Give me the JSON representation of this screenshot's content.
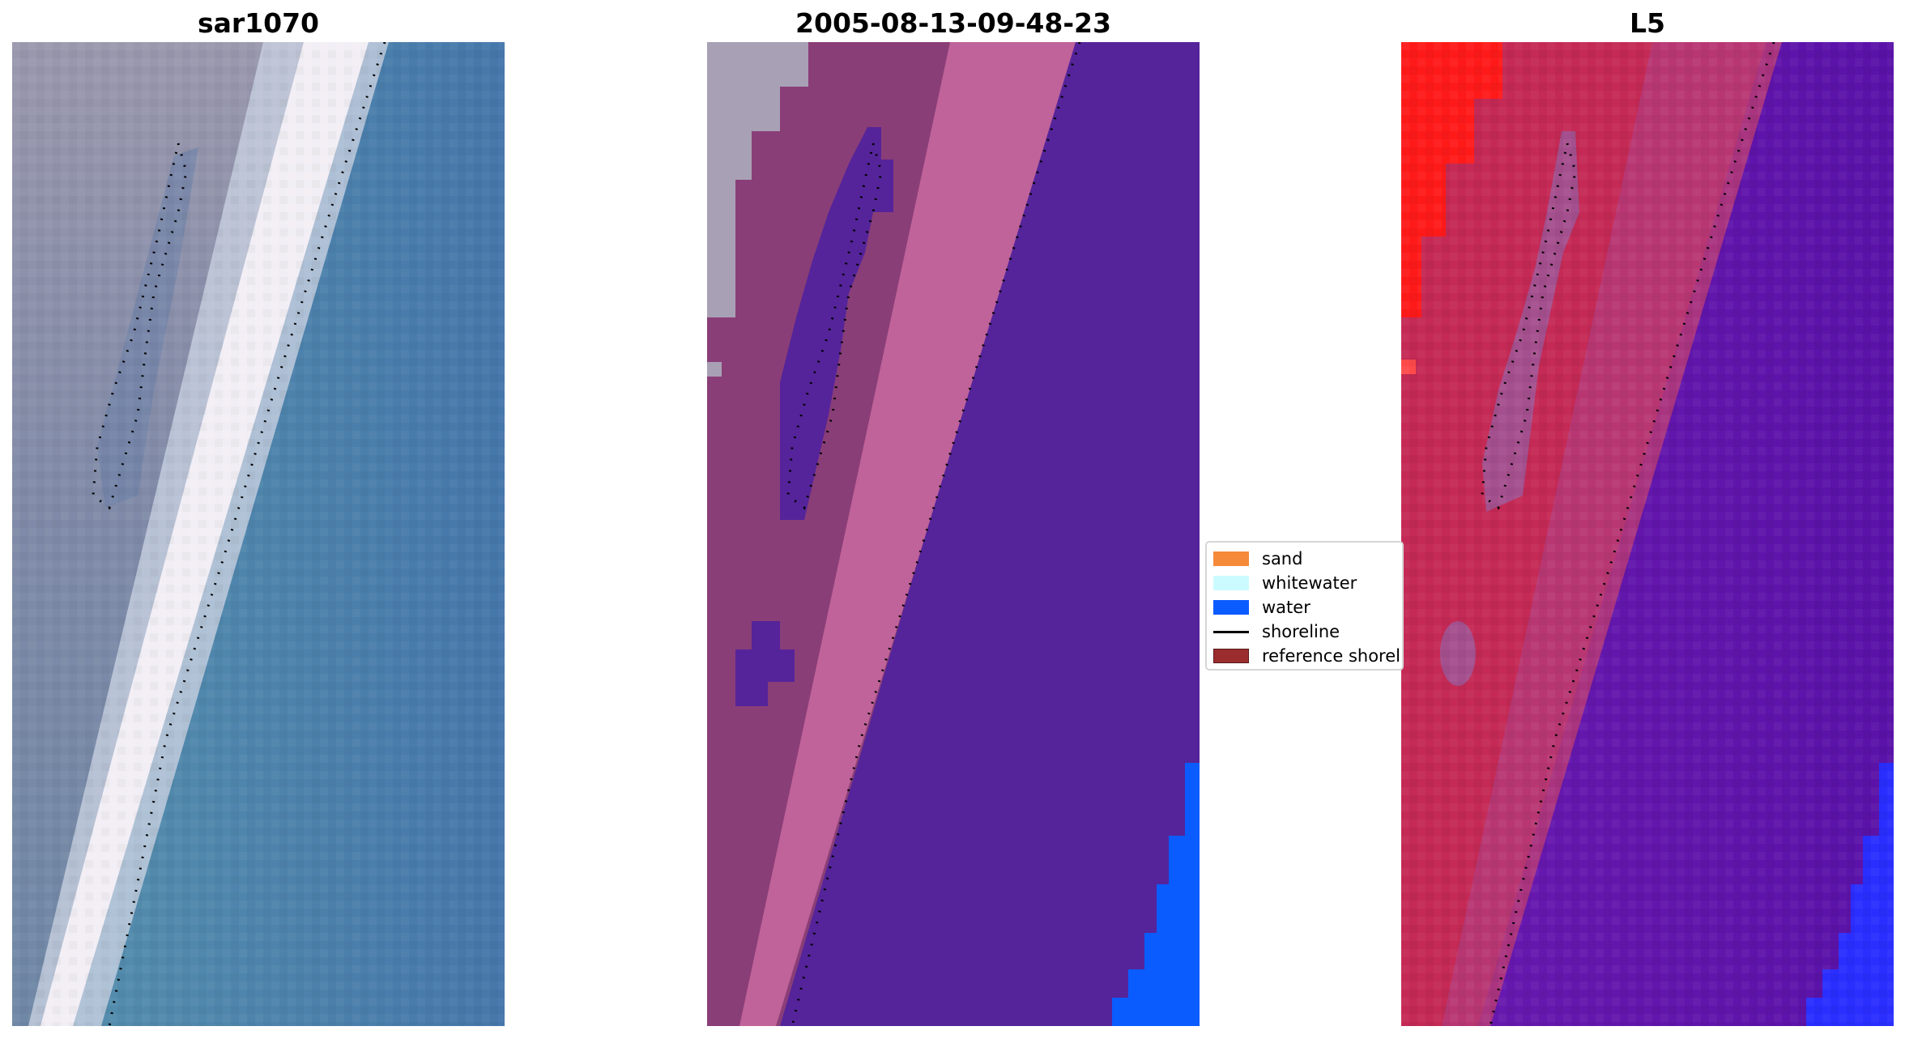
{
  "panels": [
    {
      "title": "sar1070"
    },
    {
      "title": "2005-08-13-09-48-23"
    },
    {
      "title": "L5"
    }
  ],
  "legend": {
    "items": [
      {
        "label": "sand",
        "kind": "patch",
        "color": "#f58a3b"
      },
      {
        "label": "whitewater",
        "kind": "patch",
        "color": "#ccfbff"
      },
      {
        "label": "water",
        "kind": "patch",
        "color": "#0a5cff"
      },
      {
        "label": "shoreline",
        "kind": "line",
        "color": "#000000"
      },
      {
        "label": "reference shoreline",
        "kind": "patch",
        "color": "#9b2d2f"
      }
    ]
  },
  "colors": {
    "sar_land": "#8e92ad",
    "sar_water": "#4b80a6",
    "sar_surf": "#f2eef5",
    "class_land": "#8a3e77",
    "class_band": "#c0639a",
    "class_sea": "#55249a",
    "class_water": "#0a5cff",
    "l5_land": "#c42a55",
    "l5_sea": "#5b14a8",
    "l5_red": "#ff1a1a",
    "l5_water": "#2a2eff",
    "shoreline": "#000000"
  }
}
